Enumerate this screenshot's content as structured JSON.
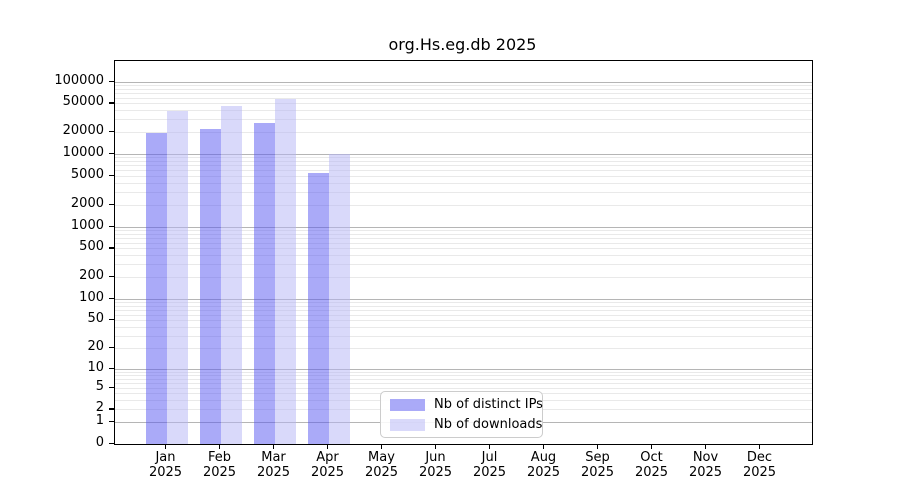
{
  "title": "org.Hs.eg.db 2025",
  "chart_data": {
    "type": "bar",
    "title": "org.Hs.eg.db 2025",
    "months": [
      "Jan",
      "Feb",
      "Mar",
      "Apr",
      "May",
      "Jun",
      "Jul",
      "Aug",
      "Sep",
      "Oct",
      "Nov",
      "Dec"
    ],
    "year": "2025",
    "categories": [
      "Jan 2025",
      "Feb 2025",
      "Mar 2025",
      "Apr 2025",
      "May 2025",
      "Jun 2025",
      "Jul 2025",
      "Aug 2025",
      "Sep 2025",
      "Oct 2025",
      "Nov 2025",
      "Dec 2025"
    ],
    "series": [
      {
        "name": "Nb of distinct IPs",
        "color": "rgba(85,85,242,0.5)",
        "color_hex": "#aaaaf8",
        "values": [
          19500,
          22300,
          26800,
          5400,
          null,
          null,
          null,
          null,
          null,
          null,
          null,
          null
        ]
      },
      {
        "name": "Nb of downloads",
        "color": "rgba(179,179,245,0.5)",
        "color_hex": "#d9d9fa",
        "values": [
          39000,
          46000,
          58000,
          10000,
          null,
          null,
          null,
          null,
          null,
          null,
          null,
          null
        ]
      }
    ],
    "y_ticks": [
      0,
      1,
      2,
      5,
      10,
      20,
      50,
      100,
      200,
      500,
      1000,
      2000,
      5000,
      10000,
      20000,
      50000,
      100000
    ],
    "y_scale": "log1p",
    "ylim": [
      0,
      100000
    ],
    "xlabel": "",
    "ylabel": "",
    "grid": {
      "major_color": "#b5b5b5",
      "minor_color": "#e9e9e9",
      "majors_at": "powers of 10",
      "minors_at": "2-9 x powers of 10"
    },
    "legend_position": "inside-bottom-center"
  },
  "legend": {
    "items": [
      {
        "label": "Nb of distinct IPs",
        "color": "rgba(85,85,242,0.5)"
      },
      {
        "label": "Nb of downloads",
        "color": "rgba(179,179,245,0.5)"
      }
    ]
  }
}
